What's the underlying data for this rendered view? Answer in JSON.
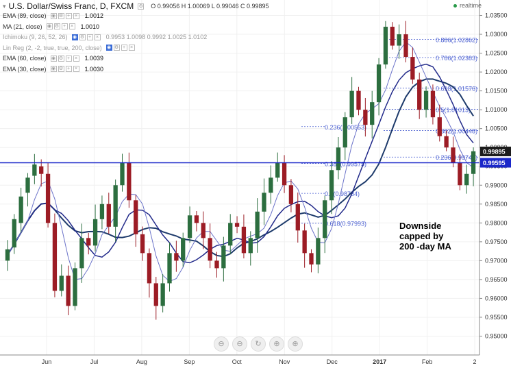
{
  "header": {
    "title": "U.S. Dollar/Swiss Franc, D, FXCM",
    "ohlc": "O 0.99056 H 1.00069 L 0.99046 C 0.99895",
    "status": "realtime"
  },
  "indicators": [
    {
      "name": "EMA (89, close)",
      "value": "1.0012",
      "dim": false
    },
    {
      "name": "MA (21, close)",
      "value": "1.0010",
      "dim": false
    },
    {
      "name": "Ichimoku (9, 26, 52, 26)",
      "value": "0.9953 1.0098 0.9992 1.0025 1.0102",
      "dim": true
    },
    {
      "name": "Lin Reg (2, -2, true, true, 200, close)",
      "value": "",
      "dim": true
    },
    {
      "name": "EMA (60, close)",
      "value": "1.0039",
      "dim": false
    },
    {
      "name": "EMA (30, close)",
      "value": "1.0030",
      "dim": false
    }
  ],
  "nav_buttons": [
    "⊖",
    "⊖",
    "↻",
    "⊕",
    "⊕"
  ],
  "colors": {
    "up": "#2c6e3f",
    "down": "#9c1c25",
    "fib": "#4a5fd1",
    "hline": "#1a27c9",
    "ma200": "#1d3a6b",
    "ema_navy": "#222a8a",
    "ma_light": "#6b73c9",
    "lastprice": "#1c1c1c"
  },
  "chart_data": {
    "type": "candlestick",
    "ylim": [
      0.945,
      1.038
    ],
    "y_ticks": [
      "1.03500",
      "1.03000",
      "1.02500",
      "1.02000",
      "1.01500",
      "1.01000",
      "1.00500",
      "1.00000",
      "0.99500",
      "0.99000",
      "0.98500",
      "0.98000",
      "0.97500",
      "0.97000",
      "0.96500",
      "0.96000",
      "0.95500",
      "0.95000"
    ],
    "x_ticks": [
      "Jun",
      "Jul",
      "Aug",
      "Sep",
      "Oct",
      "Nov",
      "Dec",
      "2017",
      "Feb",
      "2"
    ],
    "price_labels": [
      {
        "text": "0.99895",
        "value": 0.99895
      },
      {
        "text": "0.99595",
        "value": 0.99595
      }
    ],
    "fib_levels": [
      {
        "label": "0.886(1.02862)",
        "value": 1.02862
      },
      {
        "label": "0.786(1.02383)",
        "value": 1.02383
      },
      {
        "label": "0.618(1.01576)",
        "value": 1.01576
      },
      {
        "label": "0.5(1.01013)",
        "value": 1.01013
      },
      {
        "label": "0.382(1.00448)",
        "value": 1.00448
      },
      {
        "label": "0.236(0.99745)",
        "value": 0.99745
      },
      {
        "label": "0.236(1.00553)",
        "value": 1.00553
      },
      {
        "label": "0.382(0.99575)",
        "value": 0.99575
      },
      {
        "label": "0.5(0.98784)",
        "value": 0.98784
      },
      {
        "label": "0.618(0.97993)",
        "value": 0.97993
      }
    ],
    "annotation": "Downside\ncapped by\n200 -day MA",
    "last_price": 0.99895,
    "support_line": 0.99595,
    "series_close_path": [
      [
        0.97,
        0.973
      ],
      [
        0.9735,
        0.981
      ],
      [
        0.98,
        0.987
      ],
      [
        0.988,
        0.992
      ],
      [
        0.9925,
        0.9955
      ],
      [
        0.995,
        0.993
      ],
      [
        0.993,
        0.98
      ],
      [
        0.98,
        0.962
      ],
      [
        0.962,
        0.966
      ],
      [
        0.966,
        0.958
      ],
      [
        0.958,
        0.968
      ],
      [
        0.968,
        0.976
      ],
      [
        0.976,
        0.974
      ],
      [
        0.974,
        0.981
      ],
      [
        0.981,
        0.985
      ],
      [
        0.985,
        0.979
      ],
      [
        0.979,
        0.99
      ],
      [
        0.99,
        0.996
      ],
      [
        0.996,
        0.986
      ],
      [
        0.986,
        0.977
      ],
      [
        0.977,
        0.972
      ],
      [
        0.972,
        0.964
      ],
      [
        0.964,
        0.958
      ],
      [
        0.958,
        0.964
      ],
      [
        0.964,
        0.972
      ],
      [
        0.972,
        0.97
      ],
      [
        0.97,
        0.976
      ],
      [
        0.976,
        0.982
      ],
      [
        0.982,
        0.98
      ],
      [
        0.98,
        0.976
      ],
      [
        0.976,
        0.97
      ],
      [
        0.97,
        0.968
      ],
      [
        0.968,
        0.974
      ],
      [
        0.974,
        0.98
      ],
      [
        0.98,
        0.979
      ],
      [
        0.979,
        0.972
      ],
      [
        0.972,
        0.976
      ],
      [
        0.976,
        0.983
      ],
      [
        0.983,
        0.988
      ],
      [
        0.988,
        0.992
      ],
      [
        0.992,
        0.996
      ],
      [
        0.996,
        0.99
      ],
      [
        0.99,
        0.985
      ],
      [
        0.985,
        0.978
      ],
      [
        0.978,
        0.972
      ],
      [
        0.972,
        0.969
      ],
      [
        0.969,
        0.976
      ],
      [
        0.976,
        0.986
      ],
      [
        0.986,
        0.994
      ],
      [
        0.994,
        1.0
      ],
      [
        1.0,
        1.008
      ],
      [
        1.008,
        1.015
      ],
      [
        1.015,
        1.01
      ],
      [
        1.01,
        1.006
      ],
      [
        1.006,
        1.012
      ],
      [
        1.012,
        1.022
      ],
      [
        1.022,
        1.032
      ],
      [
        1.032,
        1.027
      ],
      [
        1.027,
        1.03
      ],
      [
        1.03,
        1.024
      ],
      [
        1.024,
        1.018
      ],
      [
        1.018,
        1.01
      ],
      [
        1.01,
        1.015
      ],
      [
        1.015,
        1.008
      ],
      [
        1.008,
        1.003
      ],
      [
        1.003,
        1.0
      ],
      [
        1.0,
        0.996
      ],
      [
        0.996,
        0.99
      ],
      [
        0.99,
        0.993
      ],
      [
        0.993,
        0.999
      ]
    ]
  }
}
